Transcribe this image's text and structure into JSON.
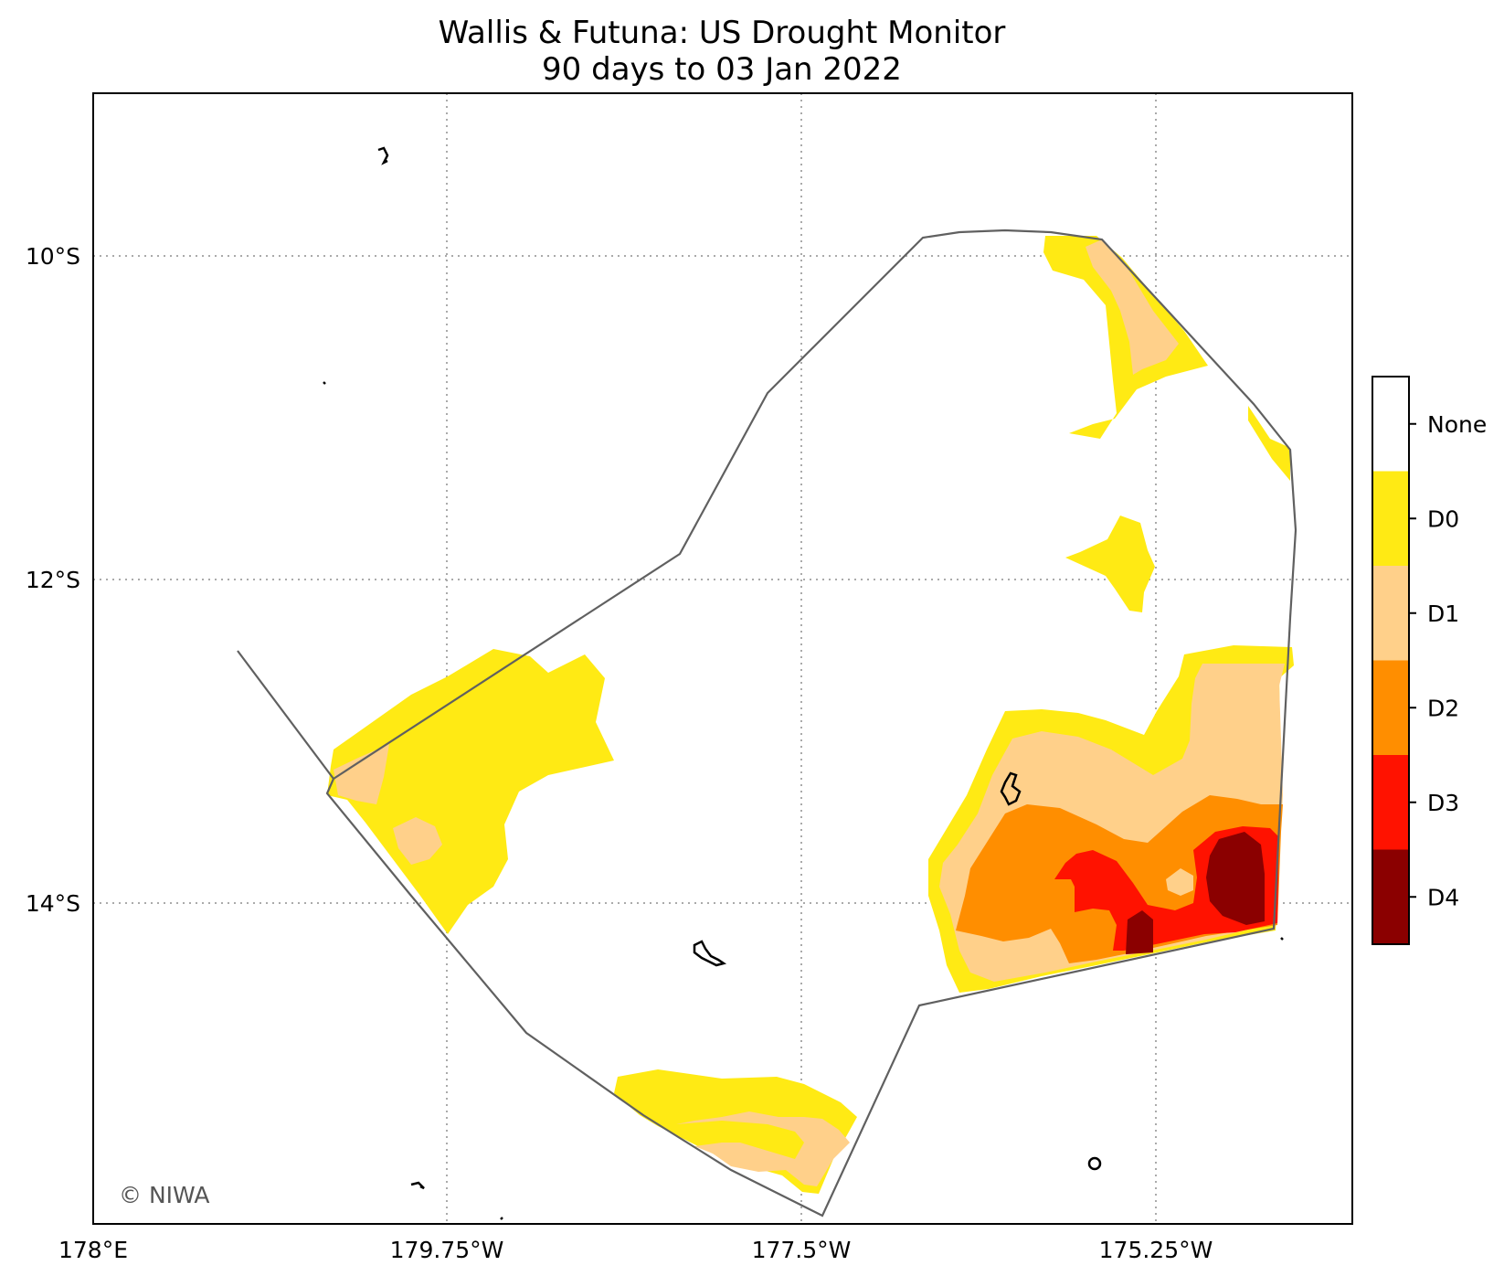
{
  "title": {
    "line1": "Wallis & Futuna: US Drought Monitor",
    "line2": "90 days to 03 Jan 2022"
  },
  "axes": {
    "x_ticks": [
      "178°E",
      "179.75°W",
      "177.5°W",
      "175.25°W"
    ],
    "y_ticks": [
      "10°S",
      "12°S",
      "14°S"
    ]
  },
  "legend": {
    "title": "",
    "categories": [
      {
        "label": "None",
        "color": "#ffffff"
      },
      {
        "label": "D0",
        "color": "#ffea14"
      },
      {
        "label": "D1",
        "color": "#ffd08a"
      },
      {
        "label": "D2",
        "color": "#ff8e00"
      },
      {
        "label": "D3",
        "color": "#ff1200"
      },
      {
        "label": "D4",
        "color": "#8b0000"
      }
    ]
  },
  "credit": "© NIWA",
  "colors": {
    "eez_outline": "#606060",
    "gridline": "#aaaaaa",
    "land_outline": "#000000"
  }
}
